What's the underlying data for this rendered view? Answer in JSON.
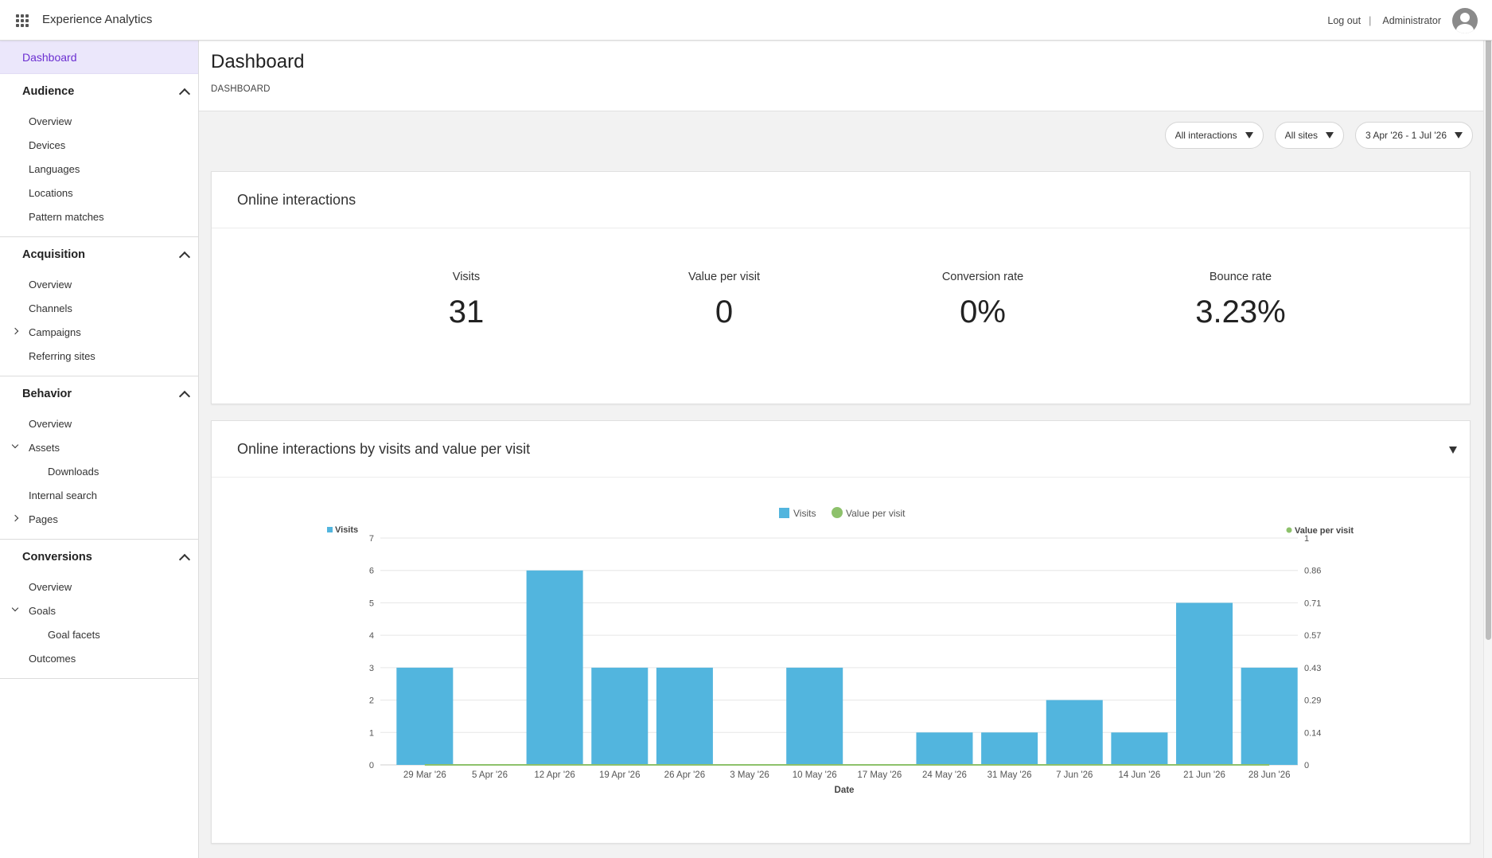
{
  "app": {
    "title": "Experience Analytics"
  },
  "topbar": {
    "logout_label": "Log out",
    "separator": "|",
    "user_name": "Administrator"
  },
  "sidebar": {
    "active": "Dashboard",
    "sections": [
      {
        "title": "Audience",
        "items": [
          {
            "label": "Overview"
          },
          {
            "label": "Devices"
          },
          {
            "label": "Languages"
          },
          {
            "label": "Locations"
          },
          {
            "label": "Pattern matches"
          }
        ]
      },
      {
        "title": "Acquisition",
        "items": [
          {
            "label": "Overview"
          },
          {
            "label": "Channels"
          },
          {
            "label": "Campaigns",
            "expander": "right"
          },
          {
            "label": "Referring sites"
          }
        ]
      },
      {
        "title": "Behavior",
        "items": [
          {
            "label": "Overview"
          },
          {
            "label": "Assets",
            "expander": "down"
          },
          {
            "label": "Downloads",
            "sub": true
          },
          {
            "label": "Internal search"
          },
          {
            "label": "Pages",
            "expander": "right"
          }
        ]
      },
      {
        "title": "Conversions",
        "items": [
          {
            "label": "Overview"
          },
          {
            "label": "Goals",
            "expander": "down"
          },
          {
            "label": "Goal facets",
            "sub": true
          },
          {
            "label": "Outcomes"
          }
        ]
      }
    ]
  },
  "page": {
    "title": "Dashboard",
    "breadcrumb": "DASHBOARD"
  },
  "filters": [
    {
      "label": "All interactions"
    },
    {
      "label": "All sites"
    },
    {
      "label": "3 Apr '26 - 1 Jul '26"
    }
  ],
  "kpi_card": {
    "title": "Online interactions",
    "kpis": [
      {
        "label": "Visits",
        "value": "31"
      },
      {
        "label": "Value per visit",
        "value": "0"
      },
      {
        "label": "Conversion rate",
        "value": "0%"
      },
      {
        "label": "Bounce rate",
        "value": "3.23%"
      }
    ]
  },
  "chart_card": {
    "title": "Online interactions by visits and value per visit"
  },
  "colors": {
    "bar": "#52b5de",
    "line": "#8dc16b",
    "active_text": "#6b2fd1"
  },
  "chart_data": {
    "type": "bar",
    "categories": [
      "29 Mar '26",
      "5 Apr '26",
      "12 Apr '26",
      "19 Apr '26",
      "26 Apr '26",
      "3 May '26",
      "10 May '26",
      "17 May '26",
      "24 May '26",
      "31 May '26",
      "7 Jun '26",
      "14 Jun '26",
      "21 Jun '26",
      "28 Jun '26"
    ],
    "series": [
      {
        "name": "Visits",
        "type": "bar",
        "axis": "left",
        "values": [
          3,
          0,
          6,
          3,
          3,
          0,
          3,
          0,
          1,
          1,
          2,
          1,
          5,
          3
        ]
      },
      {
        "name": "Value per visit",
        "type": "line",
        "axis": "right",
        "values": [
          0,
          0,
          0,
          0,
          0,
          0,
          0,
          0,
          0,
          0,
          0,
          0,
          0,
          0
        ]
      }
    ],
    "xlabel": "Date",
    "ylabel_left": "Visits",
    "ylabel_right": "Value per visit",
    "ylim_left": [
      0,
      7
    ],
    "ylim_right": [
      0,
      1
    ],
    "yticks_left": [
      "0",
      "1",
      "2",
      "3",
      "4",
      "5",
      "6",
      "7"
    ],
    "yticks_right": [
      "0",
      "0.14",
      "0.29",
      "0.43",
      "0.57",
      "0.71",
      "0.86",
      "1"
    ],
    "legend": [
      "Visits",
      "Value per visit"
    ],
    "legend_position": "top-center",
    "grid": true
  }
}
